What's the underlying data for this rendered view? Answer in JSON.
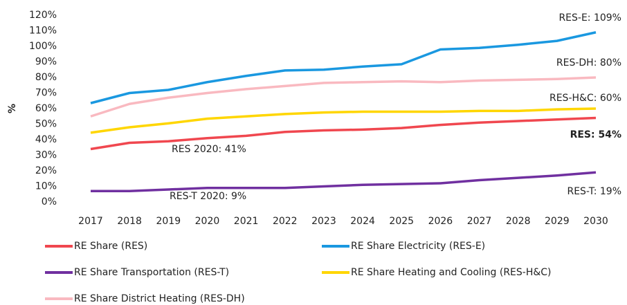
{
  "chart_data": {
    "type": "line",
    "y_label": "%",
    "categories": [
      "2017",
      "2018",
      "2019",
      "2020",
      "2021",
      "2022",
      "2023",
      "2024",
      "2025",
      "2026",
      "2027",
      "2028",
      "2029",
      "2030"
    ],
    "ylim": [
      0,
      120
    ],
    "yticks": [
      {
        "value": 0,
        "label": "0%"
      },
      {
        "value": 10,
        "label": "10%"
      },
      {
        "value": 20,
        "label": "20%"
      },
      {
        "value": 30,
        "label": "30%"
      },
      {
        "value": 40,
        "label": "40%"
      },
      {
        "value": 50,
        "label": "50%"
      },
      {
        "value": 60,
        "label": "60%"
      },
      {
        "value": 70,
        "label": "70%"
      },
      {
        "value": 80,
        "label": "80%"
      },
      {
        "value": 90,
        "label": "90%"
      },
      {
        "value": 100,
        "label": "100%"
      },
      {
        "value": 110,
        "label": "110%"
      },
      {
        "value": 120,
        "label": "120%"
      }
    ],
    "grid": false,
    "series": [
      {
        "name": "RE Share (RES)",
        "color": "#f0474f",
        "values": [
          34,
          38,
          39,
          41,
          42.5,
          45,
          46,
          46.5,
          47.5,
          49.5,
          51,
          52,
          53,
          54
        ]
      },
      {
        "name": "RE Share Electricity (RES-E)",
        "color": "#1a98e0",
        "values": [
          63.5,
          70,
          72,
          77,
          81,
          84.5,
          85,
          87,
          88.5,
          98,
          99,
          101,
          103.5,
          109
        ]
      },
      {
        "name": "RE Share Transportation (RES-T)",
        "color": "#7030a0",
        "values": [
          7,
          7,
          8,
          9,
          9,
          9,
          10,
          11,
          11.5,
          12,
          14,
          15.5,
          17,
          19
        ]
      },
      {
        "name": "RE Share Heating and Cooling (RES-H&C)",
        "color": "#ffd600",
        "values": [
          44.5,
          48,
          50.5,
          53.5,
          55,
          56.5,
          57.5,
          58,
          58,
          58,
          58.5,
          58.5,
          59.5,
          60
        ]
      },
      {
        "name": "RE Share District Heating (RES-DH)",
        "color": "#f9b9c0",
        "values": [
          55,
          63,
          67,
          70,
          72.5,
          74.5,
          76.5,
          77,
          77.5,
          77,
          78,
          78.5,
          79,
          80
        ]
      }
    ],
    "annotations": [
      "RES-E: 109%",
      "RES-DH: 80%",
      "RES-H&C: 60%",
      "RES: 54%",
      "RES-T: 19%",
      "RES 2020: 41%",
      "RES-T 2020: 9%"
    ]
  }
}
